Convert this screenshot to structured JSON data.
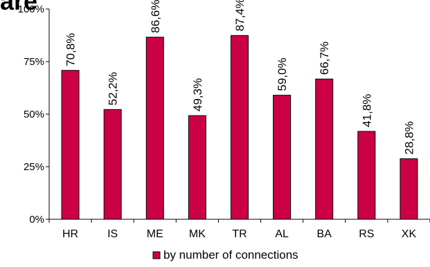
{
  "title_fragment": "are",
  "chart_data": {
    "type": "bar",
    "categories": [
      "HR",
      "IS",
      "ME",
      "MK",
      "TR",
      "AL",
      "BA",
      "RS",
      "XK"
    ],
    "series": [
      {
        "name": "by number of connections",
        "values": [
          70.8,
          52.2,
          86.6,
          49.3,
          87.4,
          59.0,
          66.7,
          41.8,
          28.8
        ],
        "labels": [
          "70,8%",
          "52,2%",
          "86,6%",
          "49,3%",
          "87,4%",
          "59,0%",
          "66,7%",
          "41,8%",
          "28,8%"
        ],
        "color": "#CC0044"
      }
    ],
    "ylim": [
      0,
      100
    ],
    "yticks": [
      0,
      25,
      50,
      75,
      100
    ],
    "ytick_labels": [
      "0%",
      "25%",
      "50%",
      "75%",
      "100%"
    ],
    "grid": false,
    "legend_position": "bottom"
  }
}
